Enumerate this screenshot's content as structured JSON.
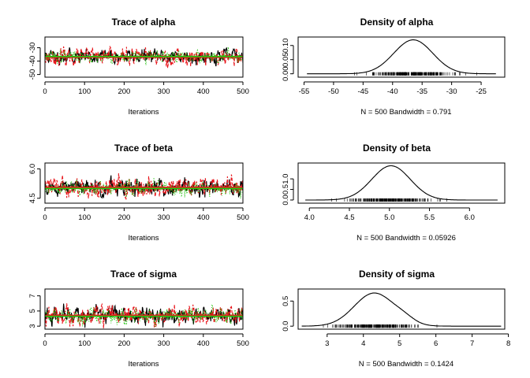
{
  "chart_data": [
    {
      "type": "line",
      "title": "Trace of alpha",
      "xlabel": "Iterations",
      "xlim": [
        0,
        500
      ],
      "ylim": [
        -52,
        -22
      ],
      "xticks": [
        0,
        100,
        200,
        300,
        400,
        500
      ],
      "yticks": [
        -50,
        -40,
        -30
      ],
      "ytick_labels": [
        "-50",
        "-40",
        "-30"
      ],
      "series": [
        {
          "color": "#000000",
          "style": "solid",
          "mean": -36.5,
          "sd": 2.6,
          "seed": 11
        },
        {
          "color": "#e8161c",
          "style": "dashed",
          "mean": -37.0,
          "sd": 3.0,
          "seed": 23
        },
        {
          "color": "#22c40e",
          "style": "dotted",
          "mean": -36.6,
          "sd": 2.2,
          "seed": 37
        }
      ]
    },
    {
      "type": "area",
      "title": "Density of alpha",
      "xlabel": "N = 500   Bandwidth = 0.791",
      "xlim": [
        -56,
        -21
      ],
      "ylim": [
        -0.012,
        0.13
      ],
      "xticks": [
        -55,
        -50,
        -45,
        -40,
        -35,
        -30,
        -25
      ],
      "yticks": [
        0.0,
        0.05,
        0.1
      ],
      "ytick_labels": [
        "0.00",
        "0.05",
        "0.10"
      ],
      "density": {
        "mean": -36.5,
        "sd": 3.3,
        "peak": 0.12,
        "range": [
          -54.5,
          -22.5
        ]
      }
    },
    {
      "type": "line",
      "title": "Trace of beta",
      "xlabel": "Iterations",
      "xlim": [
        0,
        500
      ],
      "ylim": [
        4.25,
        6.3
      ],
      "xticks": [
        0,
        100,
        200,
        300,
        400,
        500
      ],
      "yticks": [
        4.5,
        6.0
      ],
      "ytick_labels": [
        "4.5",
        "6.0"
      ],
      "series": [
        {
          "color": "#000000",
          "style": "solid",
          "mean": 5.02,
          "sd": 0.22,
          "seed": 51
        },
        {
          "color": "#e8161c",
          "style": "dashed",
          "mean": 5.05,
          "sd": 0.24,
          "seed": 63
        },
        {
          "color": "#22c40e",
          "style": "dotted",
          "mean": 5.0,
          "sd": 0.18,
          "seed": 77
        }
      ]
    },
    {
      "type": "area",
      "title": "Density of beta",
      "xlabel": "N = 500   Bandwidth = 0.05926",
      "xlim": [
        3.86,
        6.44
      ],
      "ylim": [
        -0.15,
        1.75
      ],
      "xticks": [
        4.0,
        4.5,
        5.0,
        5.5,
        6.0
      ],
      "yticks": [
        0.0,
        0.5,
        1.0
      ],
      "ytick_labels": [
        "0.0",
        "0.5",
        "1.0"
      ],
      "density": {
        "mean": 5.02,
        "sd": 0.24,
        "peak": 1.62,
        "range": [
          3.95,
          6.35
        ]
      }
    },
    {
      "type": "line",
      "title": "Trace of sigma",
      "xlabel": "Iterations",
      "xlim": [
        0,
        500
      ],
      "ylim": [
        2.6,
        7.9
      ],
      "xticks": [
        0,
        100,
        200,
        300,
        400,
        500
      ],
      "yticks": [
        3,
        5,
        7
      ],
      "ytick_labels": [
        "3",
        "5",
        "7"
      ],
      "series": [
        {
          "color": "#000000",
          "style": "solid",
          "mean": 4.35,
          "sd": 0.55,
          "seed": 91
        },
        {
          "color": "#e8161c",
          "style": "dashed",
          "mean": 4.4,
          "sd": 0.6,
          "seed": 103
        },
        {
          "color": "#22c40e",
          "style": "dotted",
          "mean": 4.3,
          "sd": 0.5,
          "seed": 117
        }
      ]
    },
    {
      "type": "area",
      "title": "Density of sigma",
      "xlabel": "N = 500   Bandwidth = 0.1424",
      "xlim": [
        2.2,
        7.9
      ],
      "ylim": [
        -0.06,
        0.74
      ],
      "xticks": [
        3,
        4,
        5,
        6,
        7,
        8
      ],
      "yticks": [
        0.0,
        0.5
      ],
      "ytick_labels": [
        "0.0",
        "0.5"
      ],
      "density": {
        "mean": 4.3,
        "sd": 0.55,
        "peak": 0.66,
        "range": [
          2.3,
          7.8
        ],
        "shoulder": 5.15
      }
    }
  ]
}
